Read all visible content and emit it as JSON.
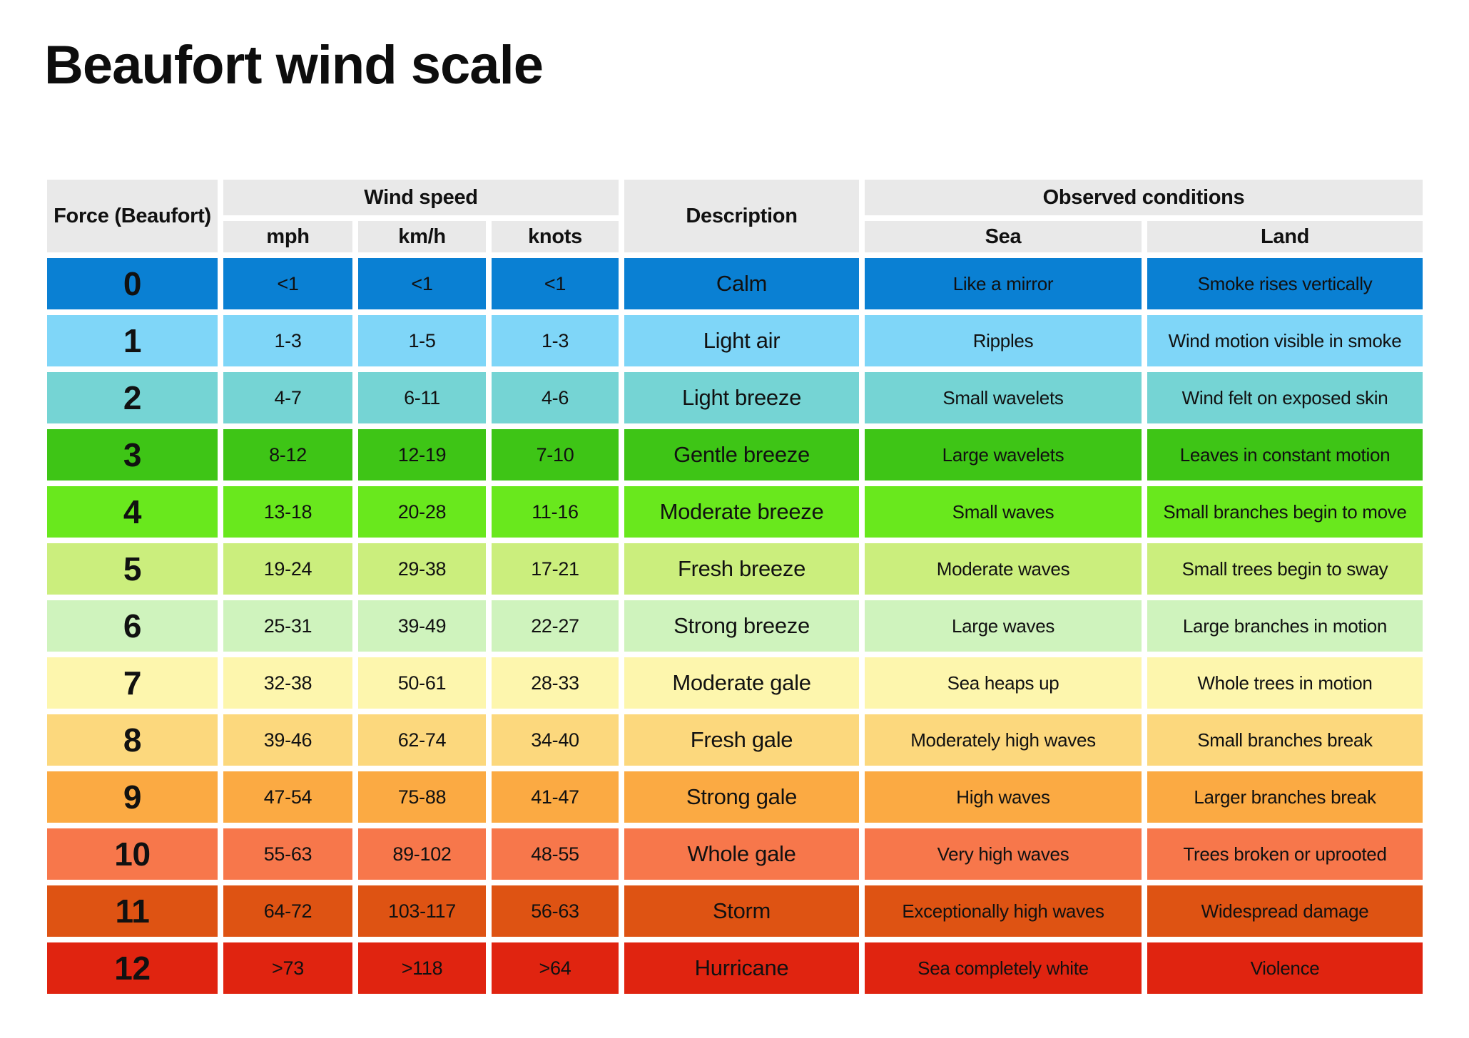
{
  "title": "Beaufort wind scale",
  "chart_data": {
    "type": "table",
    "title": "Beaufort wind scale",
    "headers": {
      "force": "Force (Beaufort)",
      "wind_speed_group": "Wind speed",
      "mph": "mph",
      "kmh": "km/h",
      "knots": "knots",
      "description": "Description",
      "observed_group": "Observed conditions",
      "sea": "Sea",
      "land": "Land"
    },
    "colors": {
      "header_bg": "#e9e9e9",
      "text": "#111111",
      "background": "#ffffff"
    },
    "rows": [
      {
        "force": "0",
        "mph": "<1",
        "kmh": "<1",
        "knots": "<1",
        "description": "Calm",
        "sea": "Like a mirror",
        "land": "Smoke rises vertically",
        "color": "#0a80d3"
      },
      {
        "force": "1",
        "mph": "1-3",
        "kmh": "1-5",
        "knots": "1-3",
        "description": "Light air",
        "sea": "Ripples",
        "land": "Wind motion visible in smoke",
        "color": "#7fd6f8"
      },
      {
        "force": "2",
        "mph": "4-7",
        "kmh": "6-11",
        "knots": "4-6",
        "description": "Light breeze",
        "sea": "Small wavelets",
        "land": "Wind felt on exposed skin",
        "color": "#75d4d4"
      },
      {
        "force": "3",
        "mph": "8-12",
        "kmh": "12-19",
        "knots": "7-10",
        "description": "Gentle breeze",
        "sea": "Large wavelets",
        "land": "Leaves in constant motion",
        "color": "#3ec516"
      },
      {
        "force": "4",
        "mph": "13-18",
        "kmh": "20-28",
        "knots": "11-16",
        "description": "Moderate breeze",
        "sea": "Small waves",
        "land": "Small branches begin to move",
        "color": "#69e81d"
      },
      {
        "force": "5",
        "mph": "19-24",
        "kmh": "29-38",
        "knots": "17-21",
        "description": "Fresh breeze",
        "sea": "Moderate waves",
        "land": "Small trees begin to sway",
        "color": "#cbee7d"
      },
      {
        "force": "6",
        "mph": "25-31",
        "kmh": "39-49",
        "knots": "22-27",
        "description": "Strong breeze",
        "sea": "Large waves",
        "land": "Large branches in motion",
        "color": "#cff3bd"
      },
      {
        "force": "7",
        "mph": "32-38",
        "kmh": "50-61",
        "knots": "28-33",
        "description": "Moderate gale",
        "sea": "Sea heaps up",
        "land": "Whole trees in motion",
        "color": "#fdf6ad"
      },
      {
        "force": "8",
        "mph": "39-46",
        "kmh": "62-74",
        "knots": "34-40",
        "description": "Fresh gale",
        "sea": "Moderately high waves",
        "land": "Small branches break",
        "color": "#fcd87d"
      },
      {
        "force": "9",
        "mph": "47-54",
        "kmh": "75-88",
        "knots": "41-47",
        "description": "Strong gale",
        "sea": "High waves",
        "land": "Larger branches break",
        "color": "#fbaa43"
      },
      {
        "force": "10",
        "mph": "55-63",
        "kmh": "89-102",
        "knots": "48-55",
        "description": "Whole gale",
        "sea": "Very high waves",
        "land": "Trees broken or uprooted",
        "color": "#f7774b"
      },
      {
        "force": "11",
        "mph": "64-72",
        "kmh": "103-117",
        "knots": "56-63",
        "description": "Storm",
        "sea": "Exceptionally high waves",
        "land": "Widespread damage",
        "color": "#de5313"
      },
      {
        "force": "12",
        "mph": ">73",
        "kmh": ">118",
        "knots": ">64",
        "description": "Hurricane",
        "sea": "Sea completely white",
        "land": "Violence",
        "color": "#e02410"
      }
    ]
  }
}
